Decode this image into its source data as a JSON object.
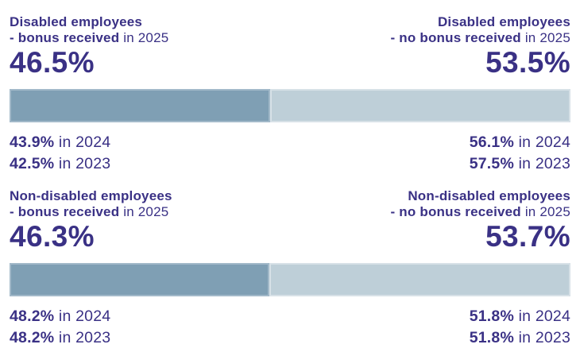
{
  "colors": {
    "background": "#ffffff",
    "text": "#3a3185",
    "bar-dark": "#7f9fb4",
    "bar-light": "#becfd8"
  },
  "chart_data": [
    {
      "type": "bar",
      "title": "Disabled employees - bonus received vs no bonus received",
      "categories": [
        "bonus received",
        "no bonus received"
      ],
      "series": [
        {
          "name": "2025",
          "values": [
            46.5,
            53.5
          ]
        },
        {
          "name": "2024",
          "values": [
            43.9,
            56.1
          ]
        },
        {
          "name": "2023",
          "values": [
            42.5,
            57.5
          ]
        }
      ],
      "layout": "100% stacked horizontal bar, 2025 shown as bar, 2024/2023 as text",
      "xlim": [
        0,
        100
      ]
    },
    {
      "type": "bar",
      "title": "Non-disabled employees - bonus received vs no bonus received",
      "categories": [
        "bonus received",
        "no bonus received"
      ],
      "series": [
        {
          "name": "2025",
          "values": [
            46.3,
            53.7
          ]
        },
        {
          "name": "2024",
          "values": [
            48.2,
            51.8
          ]
        },
        {
          "name": "2023",
          "values": [
            48.2,
            51.8
          ]
        }
      ],
      "layout": "100% stacked horizontal bar, 2025 shown as bar, 2024/2023 as text",
      "xlim": [
        0,
        100
      ]
    }
  ],
  "sections": [
    {
      "bar_left_percent": 46.5,
      "left": {
        "title": "Disabled employees",
        "subtitle_bold": "- bonus received",
        "subtitle_rest": " in 2025",
        "big_value": "46.5%",
        "history": [
          {
            "value": "43.9%",
            "suffix": " in 2024"
          },
          {
            "value": "42.5%",
            "suffix": " in 2023"
          }
        ]
      },
      "right": {
        "title": "Disabled employees",
        "subtitle_bold": "- no bonus received",
        "subtitle_rest": " in 2025",
        "big_value": "53.5%",
        "history": [
          {
            "value": "56.1%",
            "suffix": " in 2024"
          },
          {
            "value": "57.5%",
            "suffix": " in 2023"
          }
        ]
      }
    },
    {
      "bar_left_percent": 46.3,
      "left": {
        "title": "Non-disabled employees",
        "subtitle_bold": "- bonus received",
        "subtitle_rest": " in 2025",
        "big_value": "46.3%",
        "history": [
          {
            "value": "48.2%",
            "suffix": " in 2024"
          },
          {
            "value": "48.2%",
            "suffix": " in 2023"
          }
        ]
      },
      "right": {
        "title": "Non-disabled employees",
        "subtitle_bold": "- no bonus received",
        "subtitle_rest": " in 2025",
        "big_value": "53.7%",
        "history": [
          {
            "value": "51.8%",
            "suffix": " in 2024"
          },
          {
            "value": "51.8%",
            "suffix": " in 2023"
          }
        ]
      }
    }
  ]
}
